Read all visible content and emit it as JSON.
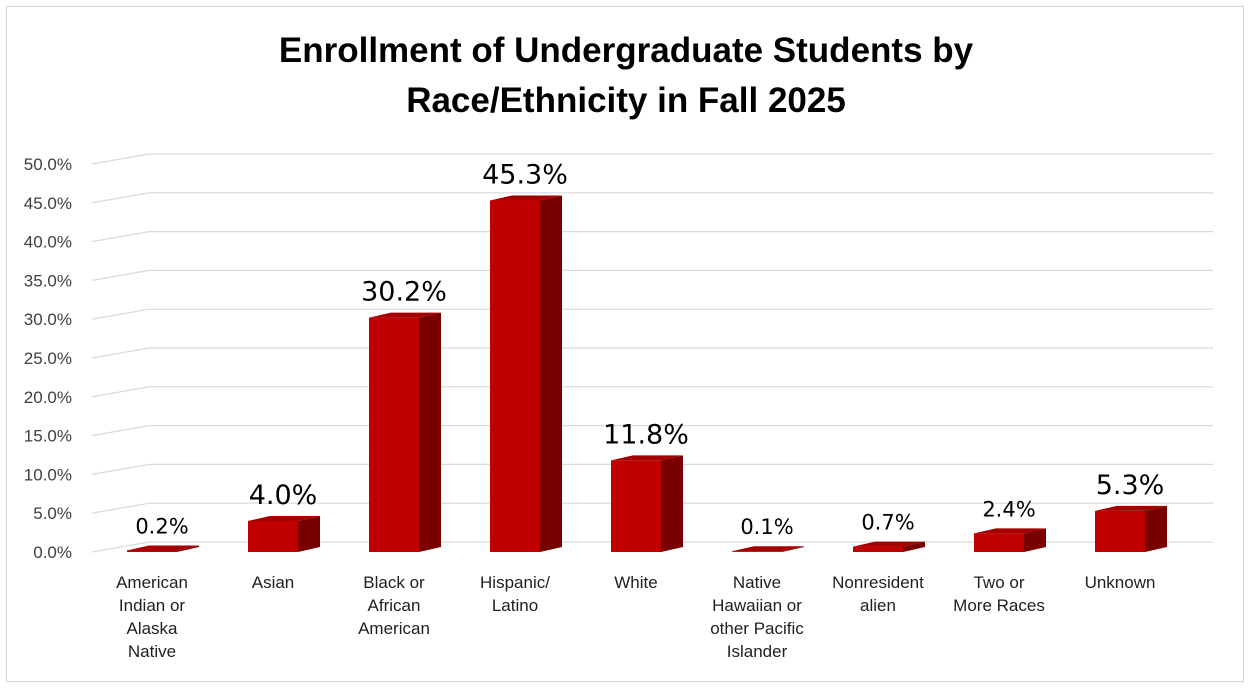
{
  "chart_data": {
    "type": "bar",
    "title_lines": [
      "Enrollment of Undergraduate Students by",
      "Race/Ethnicity in Fall 2025"
    ],
    "xlabel": "",
    "ylabel": "",
    "ylim": [
      0,
      50
    ],
    "y_ticks": [
      "0.0%",
      "5.0%",
      "10.0%",
      "15.0%",
      "20.0%",
      "25.0%",
      "30.0%",
      "35.0%",
      "40.0%",
      "45.0%",
      "50.0%"
    ],
    "grid": true,
    "legend": "none",
    "bar_color": "#c00000",
    "bar_side_color": "#7a0000",
    "bar_top_color": "#a30000",
    "categories": [
      [
        "American",
        "Indian or",
        "Alaska",
        "Native"
      ],
      [
        "Asian"
      ],
      [
        "Black or",
        "African",
        "American"
      ],
      [
        "Hispanic/",
        "Latino"
      ],
      [
        "White"
      ],
      [
        "Native",
        "Hawaiian or",
        "other Pacific",
        "Islander"
      ],
      [
        "Nonresident",
        "alien"
      ],
      [
        "Two or",
        "More Races"
      ],
      [
        "Unknown"
      ]
    ],
    "values": [
      0.2,
      4.0,
      30.2,
      45.3,
      11.8,
      0.1,
      0.7,
      2.4,
      5.3
    ],
    "data_labels": [
      "0.2%",
      "4.0%",
      "30.2%",
      "45.3%",
      "11.8%",
      "0.1%",
      "0.7%",
      "2.4%",
      "5.3%"
    ]
  }
}
